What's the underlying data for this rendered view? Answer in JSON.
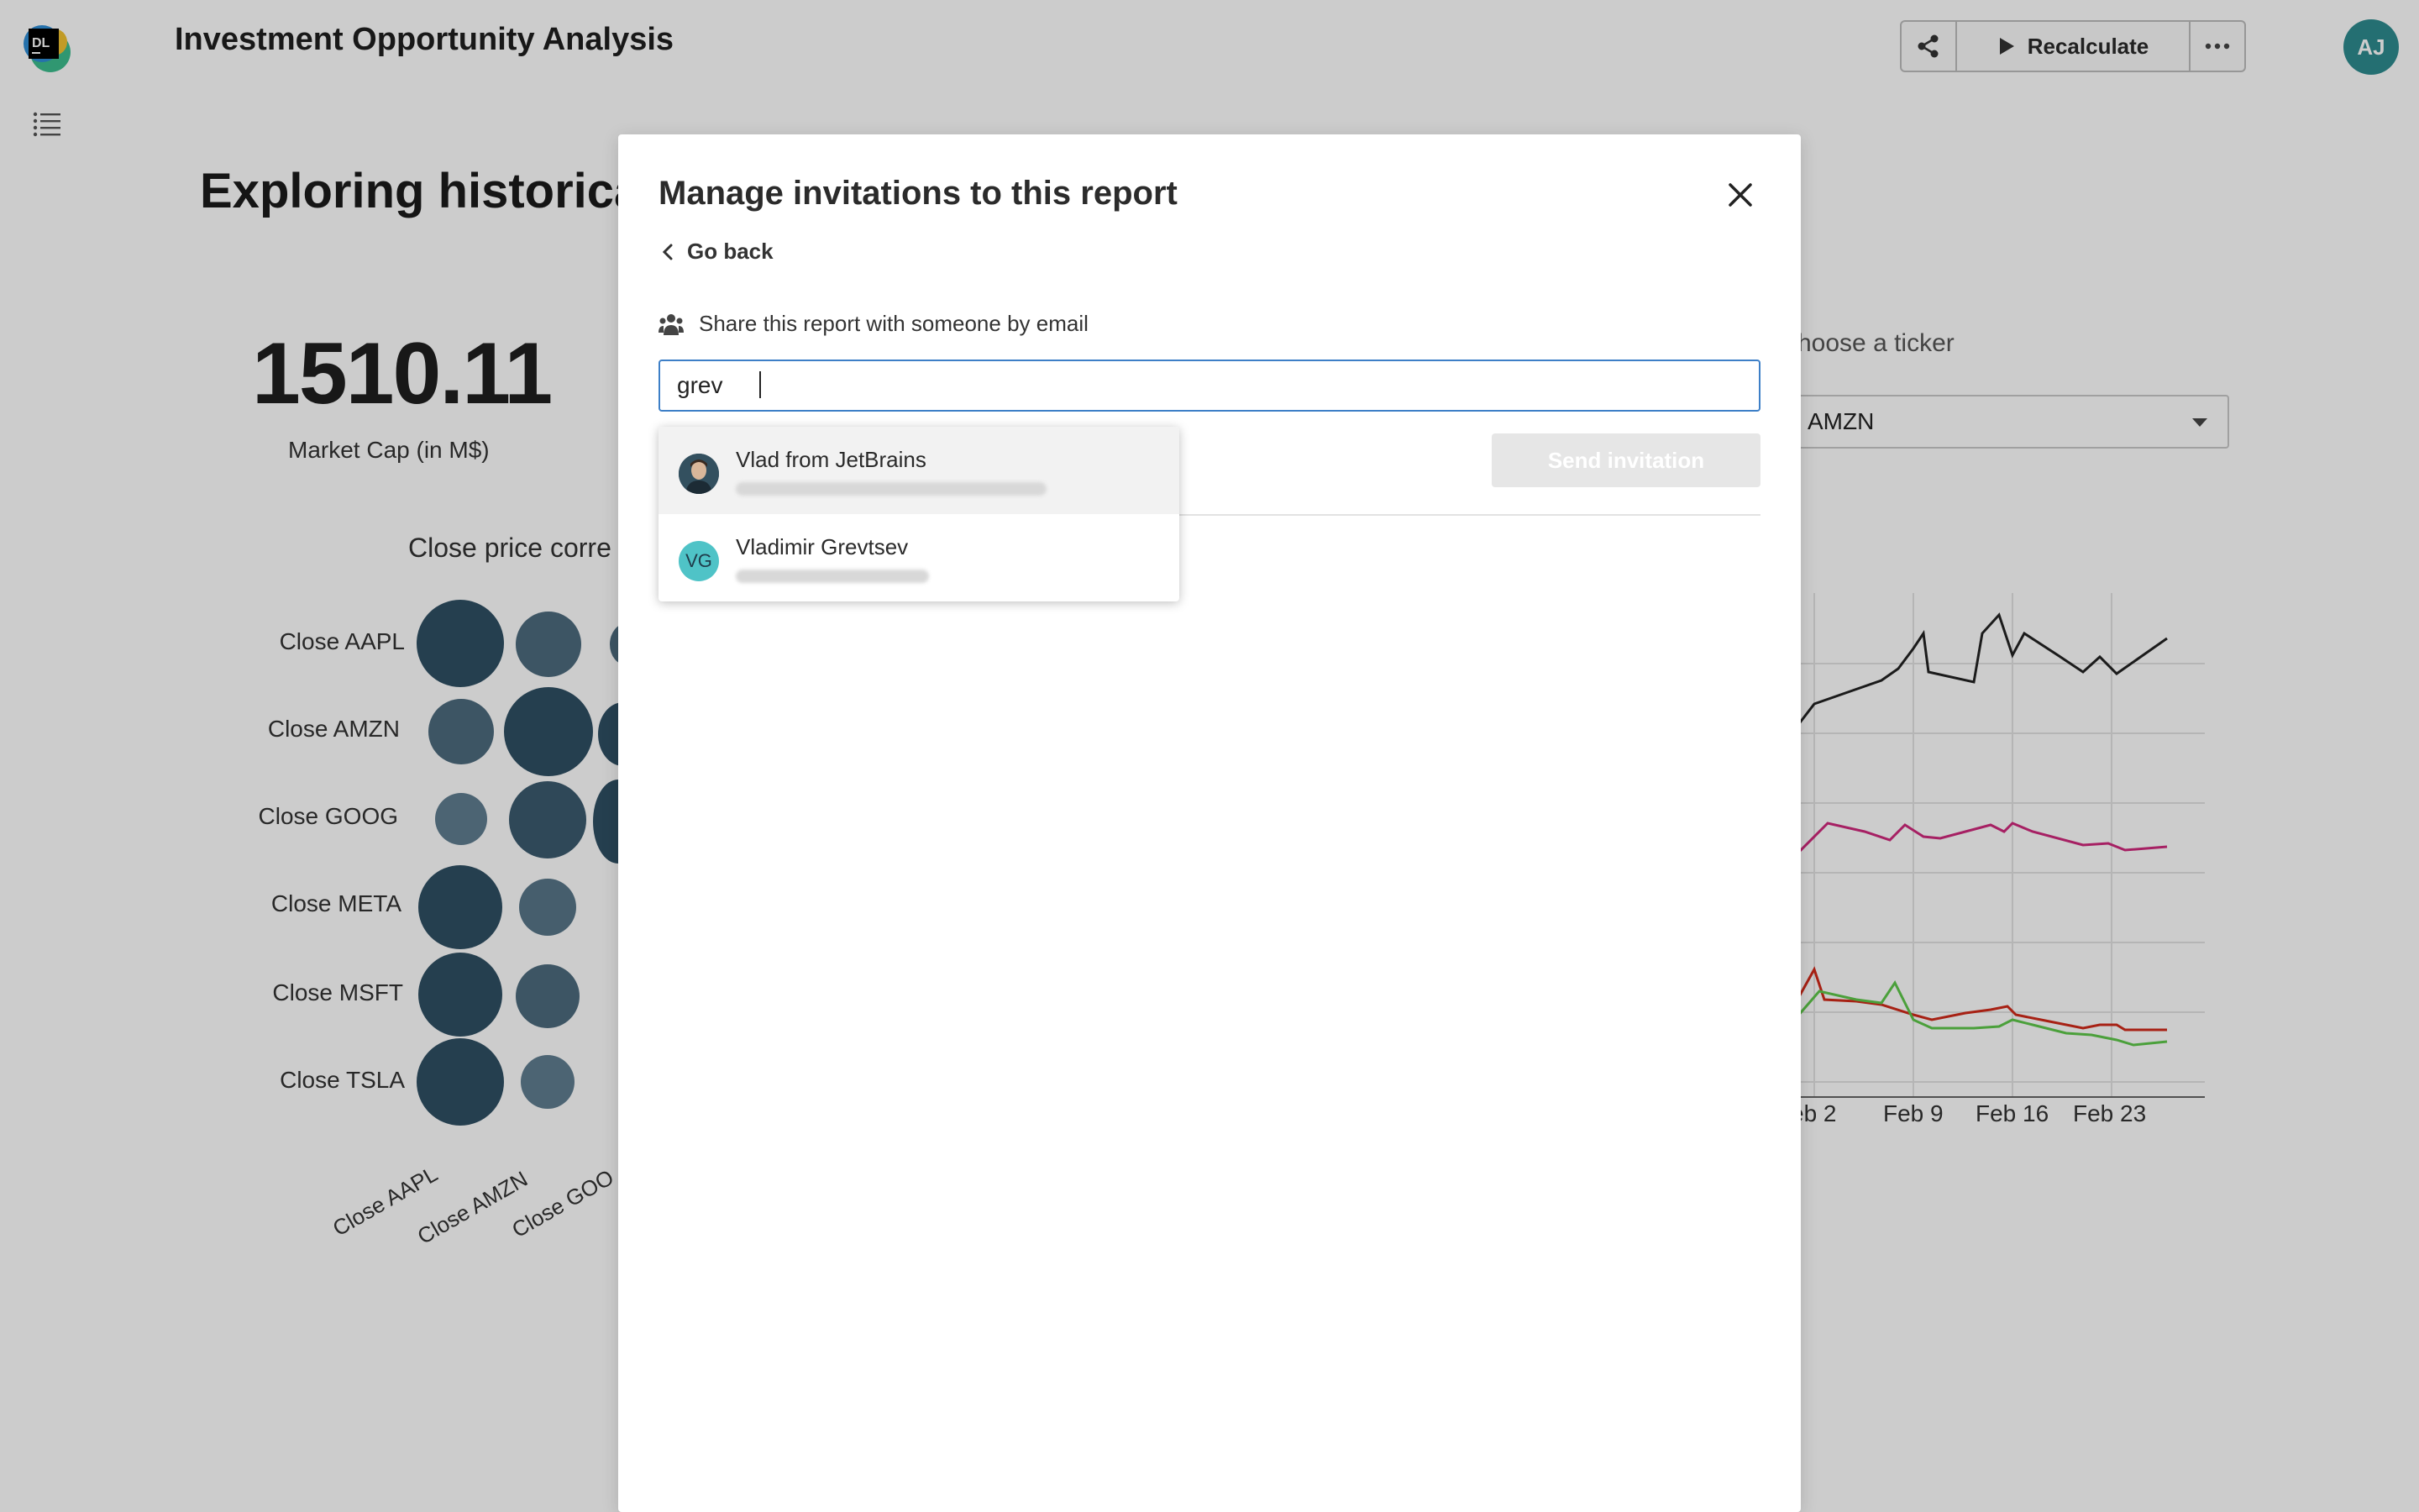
{
  "app": {
    "title": "Investment Opportunity Analysis",
    "recalculate_label": "Recalculate",
    "user_initials": "AJ",
    "logo_text": "DL"
  },
  "report": {
    "heading": "Exploring historical",
    "metric_value": "1510.11",
    "metric_label": "Market Cap (in M$)",
    "corr_title": "Close price corre",
    "ticker_prompt": "hoose a ticker",
    "ticker_value": "AMZN"
  },
  "correlation": {
    "rows": [
      "Close AAPL",
      "Close AMZN",
      "Close GOOG",
      "Close META",
      "Close MSFT",
      "Close TSLA"
    ],
    "cols": [
      "Close AAPL",
      "Close AMZN",
      "Close GOO"
    ]
  },
  "line_chart": {
    "x_ticks": [
      "eb 2",
      "Feb 9",
      "Feb 16",
      "Feb 23"
    ],
    "series_colors": [
      "#222222",
      "#d0287c",
      "#d12a1a",
      "#5ec94a"
    ]
  },
  "modal": {
    "title": "Manage invitations to this report",
    "go_back_label": "Go back",
    "share_label": "Share this report with someone by email",
    "input_value": "grev",
    "send_label": "Send invitation",
    "suggestions": [
      {
        "name": "Vlad from JetBrains",
        "avatar": "photo"
      },
      {
        "name": "Vladimir Grevtsev",
        "initials": "VG"
      }
    ]
  },
  "colors": {
    "accent": "#3d7fc7",
    "bubble_dark": "#2f4f63",
    "avatar_teal": "#2e8b8f"
  }
}
